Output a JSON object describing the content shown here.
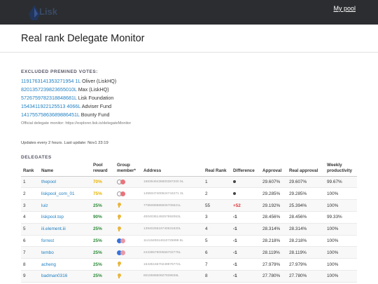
{
  "header": {
    "logo_text": "Lisk",
    "my_pool_link": "My pool"
  },
  "page_title": "Real rank Delegate Monitor",
  "excluded": {
    "heading": "EXCLUDED PREMINED VOTES:",
    "votes": [
      {
        "address": "1191763141353271954 1L",
        "owner": "Oliver (LiskHQ)"
      },
      {
        "address": "8201357239823655010L",
        "owner": "Max (LiskHQ)"
      },
      {
        "address": "5726759782318848681L",
        "owner": "Lisk Foundation"
      },
      {
        "address": "1543411922125513 4066L",
        "owner": "Adviser Fund"
      },
      {
        "address": "14175575863689886451L",
        "owner": "Bounty Fund"
      }
    ],
    "official_note": "Official delegate monitor: https://explorer.lisk.io/delegateMonitor"
  },
  "updates_text": "Updates every 2 hours. Last update: Nov1 23:19",
  "delegates": {
    "heading": "DELEGATES",
    "columns": {
      "rank": "Rank",
      "name": "Name",
      "pool_reward": "Pool reward",
      "group_member": "Group member*",
      "address": "Address",
      "real_rank": "Real Rank",
      "difference": "Difference",
      "approval": "Approval",
      "real_approval": "Real approval",
      "weekly_productivity": "Weekly productivity"
    },
    "rows": [
      {
        "rank": "1",
        "name": "thepool",
        "reward": "70%",
        "reward_color": "#e6b400",
        "group": "empty",
        "address": "1683949436800387200 9L",
        "real_rank": "1",
        "diff": "0",
        "approval": "29.607%",
        "real_approval": "29.607%",
        "productivity": "99.67%"
      },
      {
        "rank": "2",
        "name": "liskpool_com_01",
        "reward": "75%",
        "reward_color": "#e6b400",
        "group": "empty",
        "address": "1459347400624744271 3L",
        "real_rank": "2",
        "diff": "0",
        "approval": "29.285%",
        "real_approval": "29.285%",
        "productivity": "100%"
      },
      {
        "rank": "3",
        "name": "luiz",
        "reward": "25%",
        "reward_color": "#2e8b3a",
        "group": "pin",
        "address": "7785089686506705621L",
        "real_rank": "55",
        "diff": "+52",
        "approval": "29.192%",
        "real_approval": "25.394%",
        "productivity": "100%"
      },
      {
        "rank": "4",
        "name": "liskpool.top",
        "reward": "90%",
        "reward_color": "#2e8b3a",
        "group": "pin",
        "address": "4004036149257692063L",
        "real_rank": "3",
        "diff": "-1",
        "approval": "28.456%",
        "real_approval": "28.456%",
        "productivity": "99.33%"
      },
      {
        "rank": "5",
        "name": "iii.element.iii",
        "reward": "25%",
        "reward_color": "#2e8b3a",
        "group": "pin",
        "address": "1394025616740531820L",
        "real_rank": "4",
        "diff": "-1",
        "approval": "28.314%",
        "real_approval": "28.314%",
        "productivity": "100%"
      },
      {
        "rank": "6",
        "name": "forrest",
        "reward": "25%",
        "reward_color": "#2e8b3a",
        "group": "blue",
        "address": "1141640614610725898 6L",
        "real_rank": "5",
        "diff": "-1",
        "approval": "28.218%",
        "real_approval": "28.218%",
        "productivity": "100%"
      },
      {
        "rank": "7",
        "name": "tembo",
        "reward": "25%",
        "reward_color": "#2e8b3a",
        "group": "blue",
        "address": "2433857900558702776L",
        "real_rank": "6",
        "diff": "-1",
        "approval": "28.119%",
        "real_approval": "28.119%",
        "productivity": "100%"
      },
      {
        "rank": "8",
        "name": "acheng",
        "reward": "25%",
        "reward_color": "#2e8b3a",
        "group": "pin",
        "address": "1543515670249976772L",
        "real_rank": "7",
        "diff": "-1",
        "approval": "27.979%",
        "real_approval": "27.979%",
        "productivity": "100%"
      },
      {
        "rank": "9",
        "name": "badman0316",
        "reward": "25%",
        "reward_color": "#2e8b3a",
        "group": "pin",
        "address": "801959860607939838L",
        "real_rank": "8",
        "diff": "-1",
        "approval": "27.780%",
        "real_approval": "27.780%",
        "productivity": "100%"
      }
    ]
  }
}
